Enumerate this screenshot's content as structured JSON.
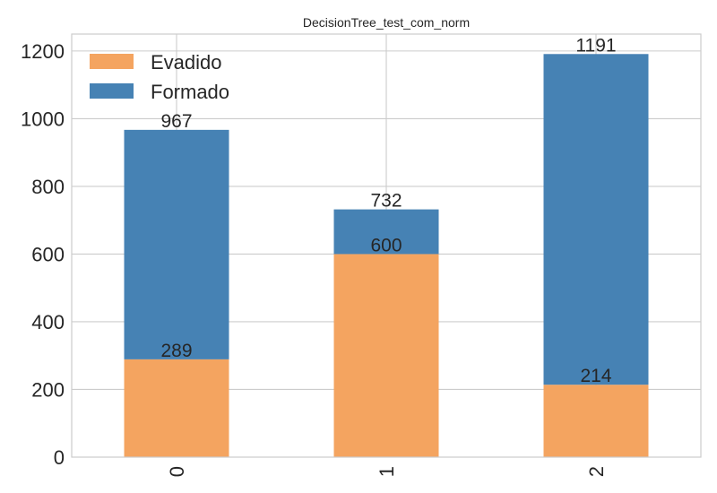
{
  "chart_data": {
    "type": "bar",
    "stacked": true,
    "title": "DecisionTree_test_com_norm",
    "xlabel": "",
    "ylabel": "",
    "categories": [
      "0",
      "1",
      "2"
    ],
    "series": [
      {
        "name": "Evadido",
        "values": [
          289,
          600,
          214
        ],
        "color": "#f4a460"
      },
      {
        "name": "Formado",
        "values": [
          678,
          132,
          977
        ],
        "color": "#4682b4"
      }
    ],
    "data_labels": {
      "Evadido": [
        "289",
        "600",
        "214"
      ],
      "Formado": [
        "967",
        "732",
        "1191"
      ]
    },
    "ylim": [
      0,
      1250
    ],
    "yticks": [
      0,
      200,
      400,
      600,
      800,
      1000,
      1200
    ],
    "grid": true,
    "legend_position": "top-left",
    "x_tick_rotation": "vertical"
  }
}
